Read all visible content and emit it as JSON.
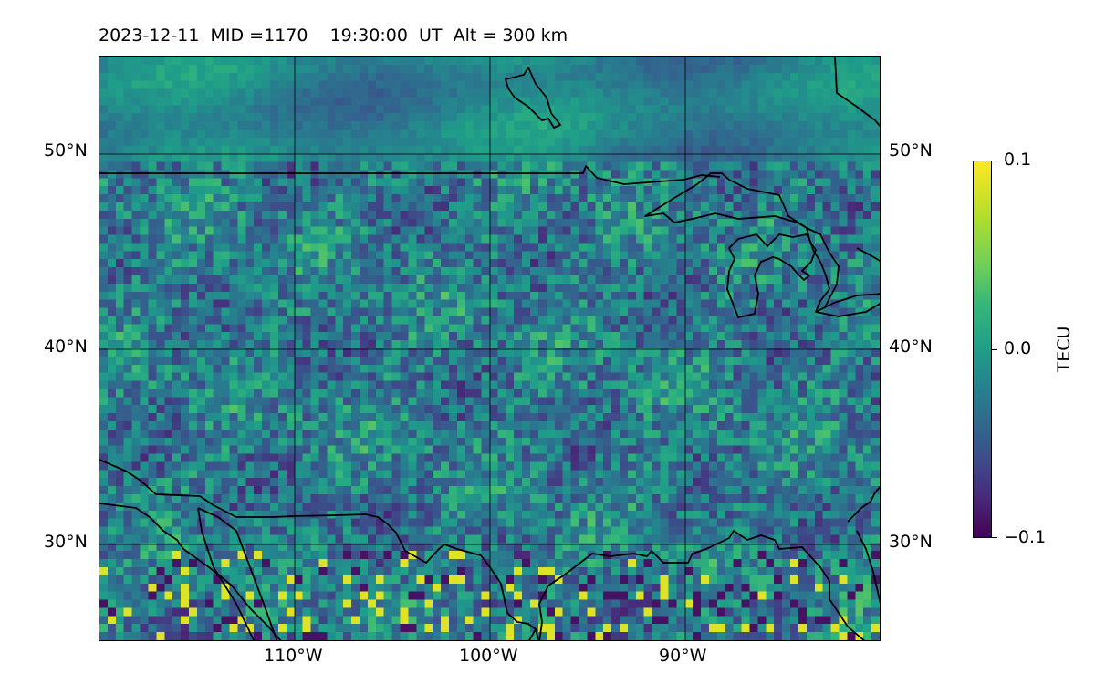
{
  "header": {
    "title": "2023-12-11  MID =1170    19:30:00  UT  Alt = 300 km"
  },
  "map": {
    "lat_labels": [
      "50°N",
      "40°N",
      "30°N"
    ],
    "lon_labels": [
      "110°W",
      "100°W",
      "90°W"
    ],
    "lat_values": [
      50,
      40,
      30
    ],
    "lon_values": [
      -110,
      -100,
      -90
    ],
    "extent": {
      "lon_min": -120,
      "lon_max": -80,
      "lat_min": 25,
      "lat_max": 55
    },
    "coastline_color": "#000000"
  },
  "colorbar": {
    "label": "TECU",
    "max_label": "0.1",
    "mid_label": "0.0",
    "min_label": "−0.1",
    "vmin": -0.1,
    "vmax": 0.1,
    "colormap": "viridis"
  }
}
